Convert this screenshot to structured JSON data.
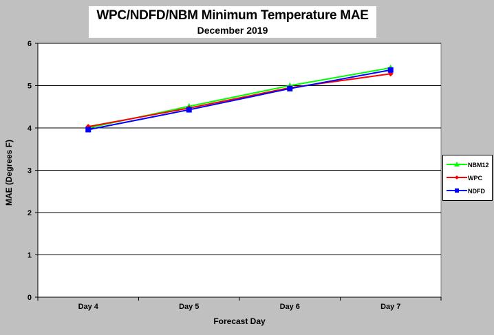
{
  "title": "WPC/NDFD/NBM  Minimum Temperature MAE",
  "subtitle": "December 2019",
  "chart_data": {
    "type": "line",
    "title": "WPC/NDFD/NBM  Minimum Temperature MAE",
    "subtitle": "December 2019",
    "xlabel": "Forecast Day",
    "ylabel": "MAE (Degrees F)",
    "categories": [
      "Day 4",
      "Day 5",
      "Day 6",
      "Day 7"
    ],
    "ylim": [
      0,
      6
    ],
    "yticks": [
      0,
      1,
      2,
      3,
      4,
      5,
      6
    ],
    "grid": true,
    "legend_position": "right",
    "series": [
      {
        "name": "NBM12",
        "color": "#00ff00",
        "marker": "triangle",
        "values": [
          4.0,
          4.51,
          5.0,
          5.42
        ]
      },
      {
        "name": "WPC",
        "color": "#ff0000",
        "marker": "diamond",
        "values": [
          4.03,
          4.47,
          4.95,
          5.28
        ]
      },
      {
        "name": "NDFD",
        "color": "#0000ff",
        "marker": "square",
        "values": [
          3.96,
          4.43,
          4.93,
          5.37
        ]
      }
    ]
  }
}
